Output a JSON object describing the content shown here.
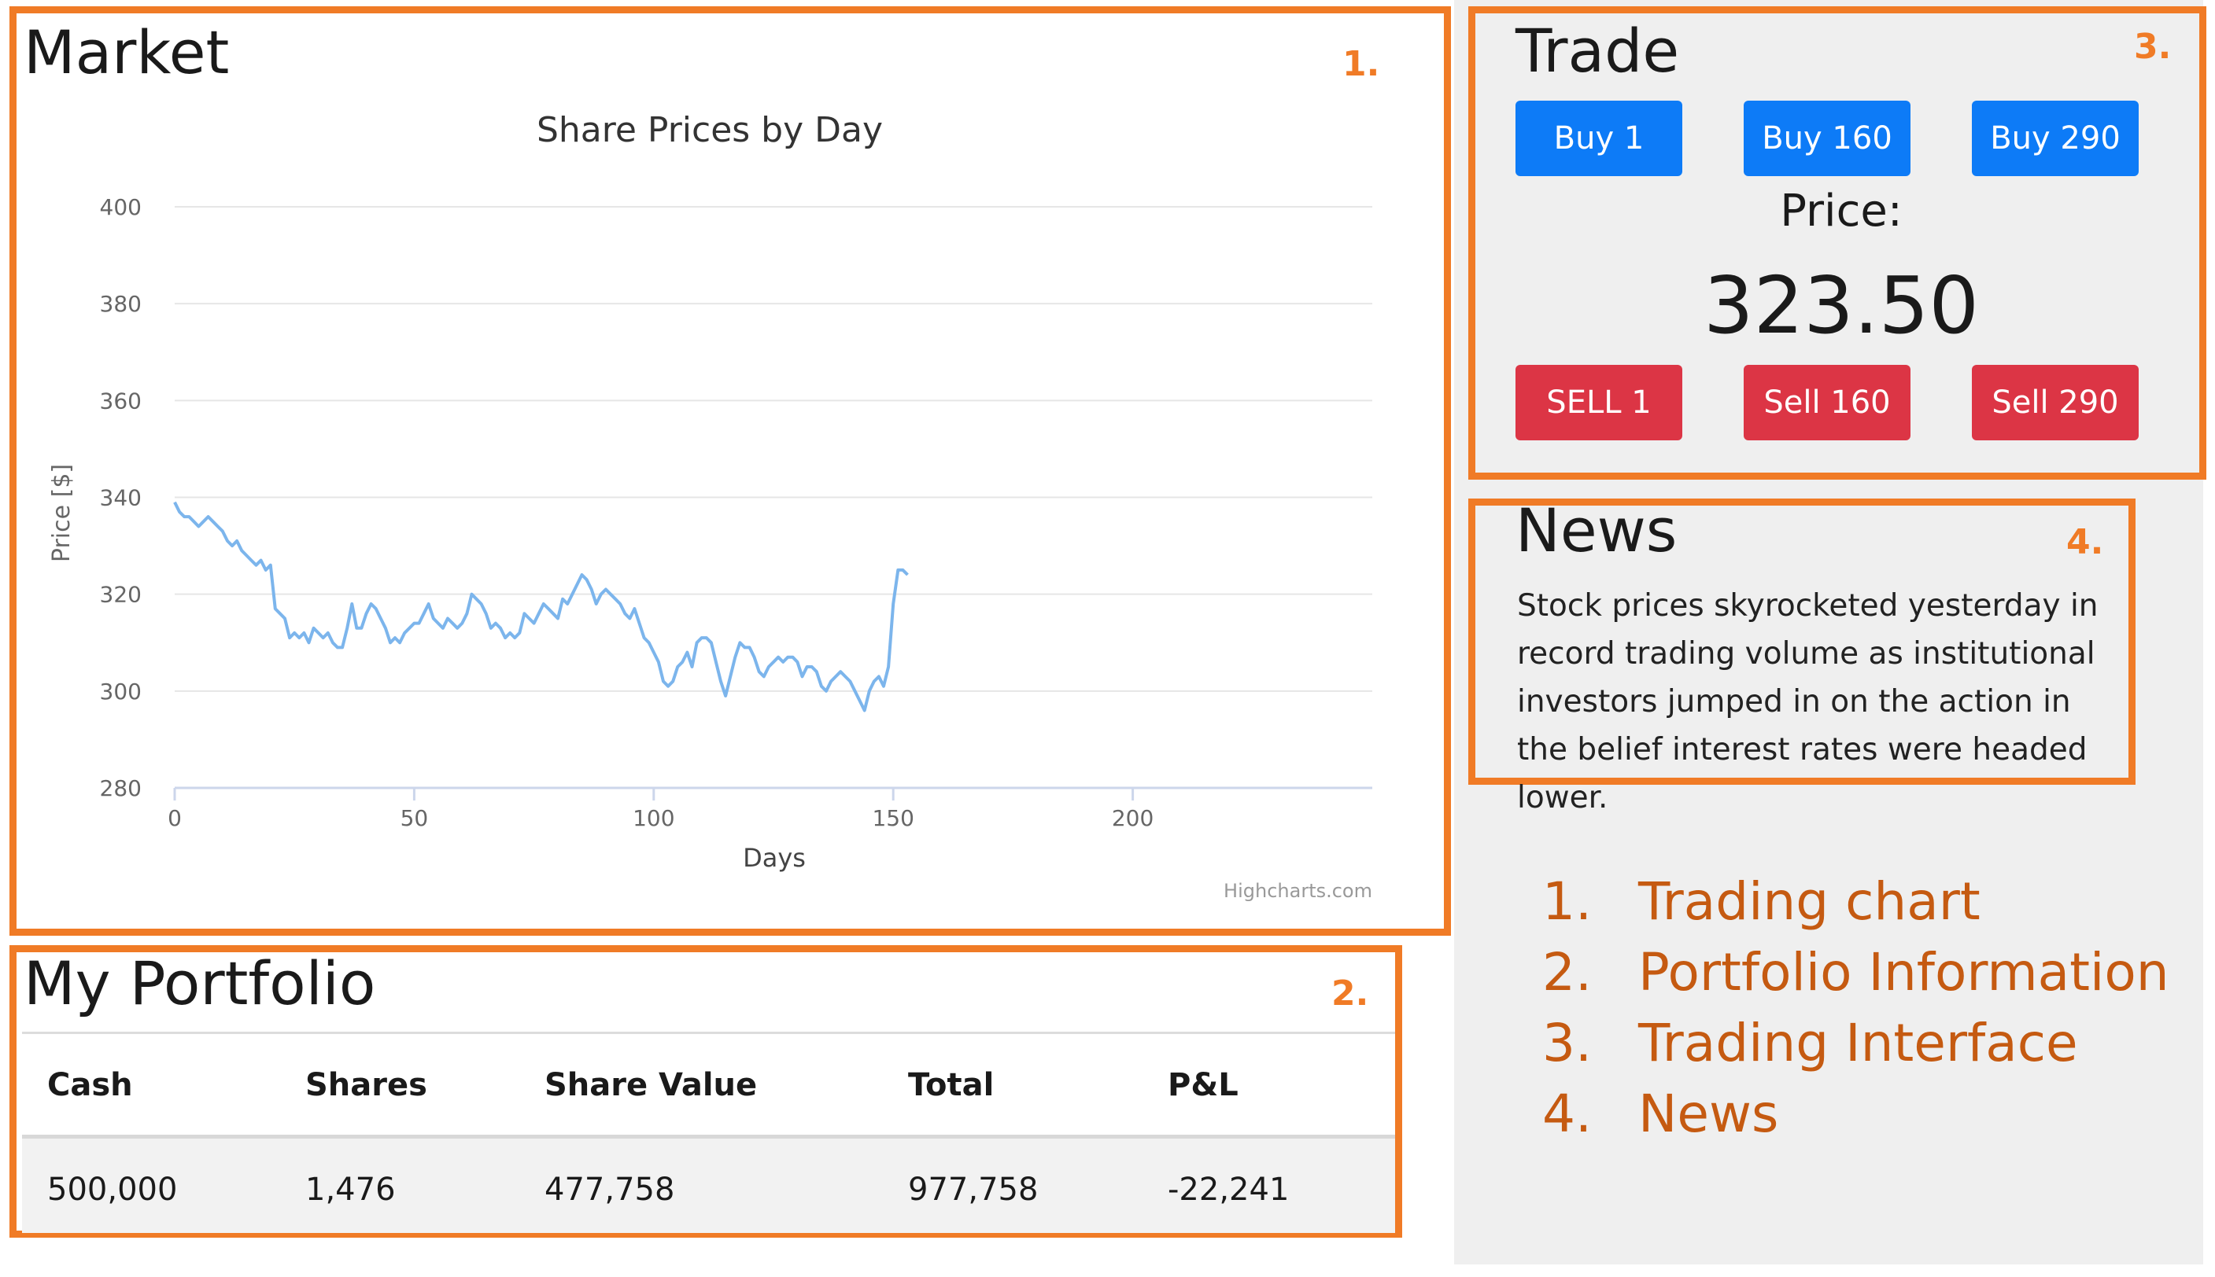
{
  "market": {
    "title": "Market",
    "number": "1.",
    "credit": "Highcharts.com"
  },
  "chart_data": {
    "type": "line",
    "title": "Share Prices by Day",
    "xlabel": "Days",
    "ylabel": "Price [$]",
    "xlim": [
      0,
      250
    ],
    "ylim": [
      280,
      400
    ],
    "x_ticks": [
      "0",
      "50",
      "100",
      "150",
      "200"
    ],
    "y_ticks": [
      "280",
      "300",
      "320",
      "340",
      "360",
      "380",
      "400"
    ],
    "grid": true,
    "legend": "none",
    "series": [
      {
        "values": [
          339,
          337,
          336,
          336,
          335,
          334,
          335,
          336,
          335,
          334,
          333,
          331,
          330,
          331,
          329,
          328,
          327,
          326,
          327,
          325,
          326,
          317,
          316,
          315,
          311,
          312,
          311,
          312,
          310,
          313,
          312,
          311,
          312,
          310,
          309,
          309,
          313,
          318,
          313,
          313,
          316,
          318,
          317,
          315,
          313,
          310,
          311,
          310,
          312,
          313,
          314,
          314,
          316,
          318,
          315,
          314,
          313,
          315,
          314,
          313,
          314,
          316,
          320,
          319,
          318,
          316,
          313,
          314,
          313,
          311,
          312,
          311,
          312,
          316,
          315,
          314,
          316,
          318,
          317,
          316,
          315,
          319,
          318,
          320,
          322,
          324,
          323,
          321,
          318,
          320,
          321,
          320,
          319,
          318,
          316,
          315,
          317,
          314,
          311,
          310,
          308,
          306,
          302,
          301,
          302,
          305,
          306,
          308,
          305,
          310,
          311,
          311,
          310,
          306,
          302,
          299,
          303,
          307,
          310,
          309,
          309,
          307,
          304,
          303,
          305,
          306,
          307,
          306,
          307,
          307,
          306,
          303,
          305,
          305,
          304,
          301,
          300,
          302,
          303,
          304,
          303,
          302,
          300,
          298,
          296,
          300,
          302,
          303,
          301,
          305,
          318,
          325,
          325,
          324
        ],
        "color": "#7cb5ec"
      }
    ]
  },
  "portfolio": {
    "title": "My Portfolio",
    "number": "2.",
    "headers": [
      "Cash",
      "Shares",
      "Share Value",
      "Total",
      "P&L"
    ],
    "row": [
      "500,000",
      "1,476",
      "477,758",
      "977,758",
      "-22,241"
    ]
  },
  "trade": {
    "title": "Trade",
    "number": "3.",
    "buy_buttons": [
      "Buy 1",
      "Buy 160",
      "Buy 290"
    ],
    "sell_buttons": [
      "SELL 1",
      "Sell 160",
      "Sell 290"
    ],
    "price_label": "Price:",
    "price_value": "323.50"
  },
  "news": {
    "title": "News",
    "number": "4.",
    "text": "Stock prices skyrocketed yesterday in record trading volume as institutional investors jumped in on the action in the belief interest rates were headed lower."
  },
  "legend_list": [
    {
      "num": "1.",
      "text": "Trading chart"
    },
    {
      "num": "2.",
      "text": "Portfolio Information"
    },
    {
      "num": "3.",
      "text": "Trading Interface"
    },
    {
      "num": "4.",
      "text": "News"
    }
  ],
  "colors": {
    "frame": "#f07b26",
    "buy": "#0d7bf7",
    "sell": "#dc3545",
    "legend_text": "#c55a11"
  }
}
